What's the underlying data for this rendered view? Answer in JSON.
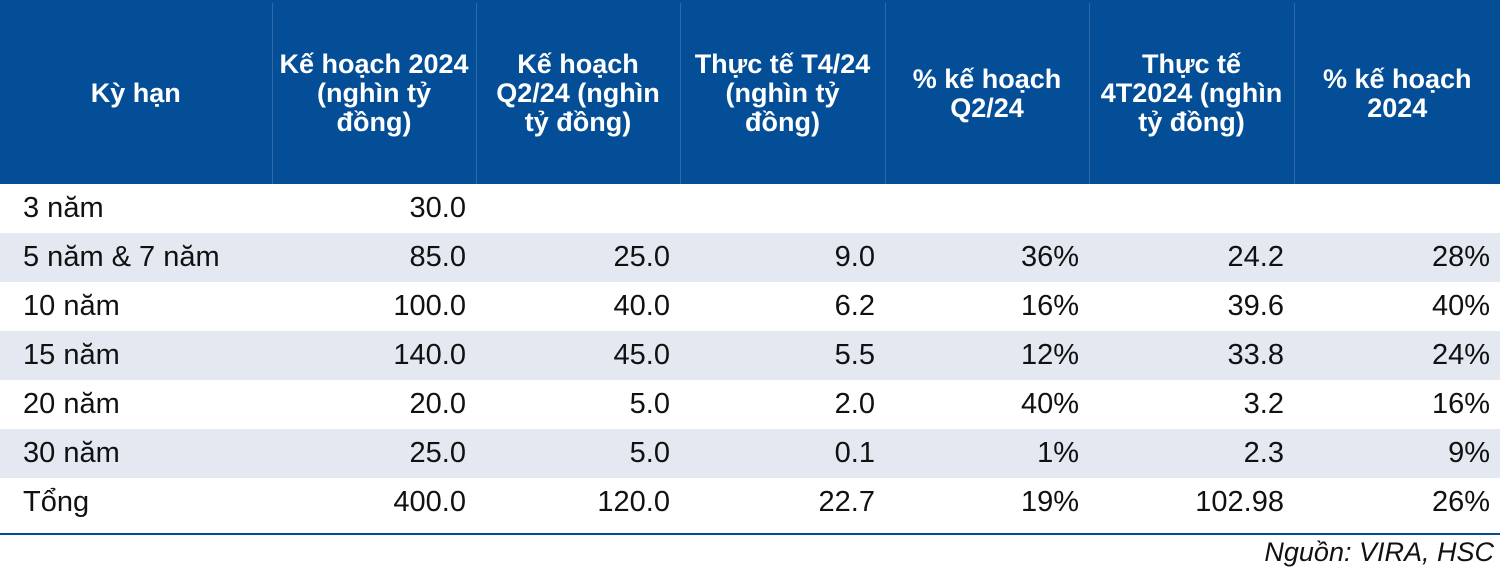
{
  "table": {
    "headers": [
      "Kỳ hạn",
      "Kế hoạch 2024 (nghìn tỷ đồng)",
      "Kế hoạch Q2/24 (nghìn tỷ đồng)",
      "Thực tế T4/24 (nghìn tỷ đồng)",
      "% kế hoạch Q2/24",
      "Thực tế 4T2024 (nghìn tỷ đồng)",
      "% kế hoạch 2024"
    ],
    "rows": [
      [
        "3 năm",
        "30.0",
        "",
        "",
        "",
        "",
        ""
      ],
      [
        "5 năm & 7 năm",
        "85.0",
        "25.0",
        "9.0",
        "36%",
        "24.2",
        "28%"
      ],
      [
        "10 năm",
        "100.0",
        "40.0",
        "6.2",
        "16%",
        "39.6",
        "40%"
      ],
      [
        "15 năm",
        "140.0",
        "45.0",
        "5.5",
        "12%",
        "33.8",
        "24%"
      ],
      [
        "20 năm",
        "20.0",
        "5.0",
        "2.0",
        "40%",
        "3.2",
        "16%"
      ],
      [
        "30 năm",
        "25.0",
        "5.0",
        "0.1",
        "1%",
        "2.3",
        "9%"
      ],
      [
        "Tổng",
        "400.0",
        "120.0",
        "22.7",
        "19%",
        "102.98",
        "26%"
      ]
    ]
  },
  "source": "Nguồn: VIRA, HSC",
  "colors": {
    "header_bg": "#044e97",
    "stripe": "#e4e8f1",
    "rule": "#044e97"
  }
}
